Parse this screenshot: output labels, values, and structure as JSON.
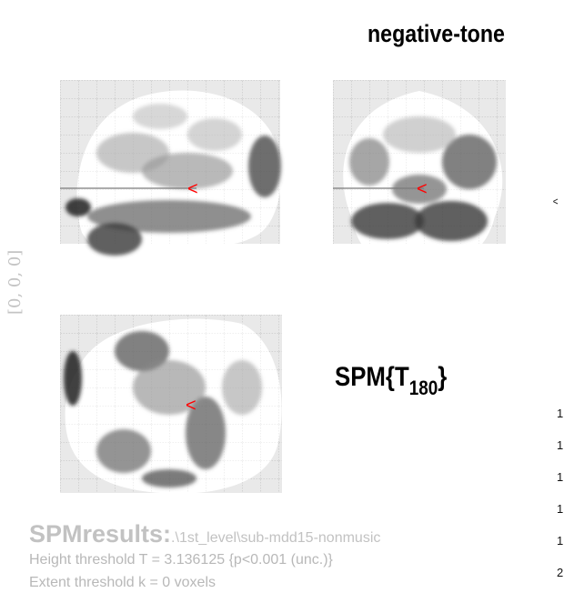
{
  "figure": {
    "title": "negative-tone",
    "coordinate_label": "[0, 0, 0]",
    "stat": {
      "prefix": "SPM{T",
      "subscript": "180",
      "suffix": "}"
    },
    "marker_color": "#ff0000"
  },
  "results": {
    "label": "SPMresults:",
    "path": ".\\1st_level\\sub-mdd15-nonmusic",
    "height_threshold": "Height threshold T = 3.136125  {p<0.001 (unc.)}",
    "extent_threshold": "Extent threshold k = 0 voxels"
  },
  "right_panel": {
    "rotated_mark": "^",
    "row_numbers": [
      "1",
      "1",
      "1",
      "1",
      "1",
      "2"
    ]
  }
}
